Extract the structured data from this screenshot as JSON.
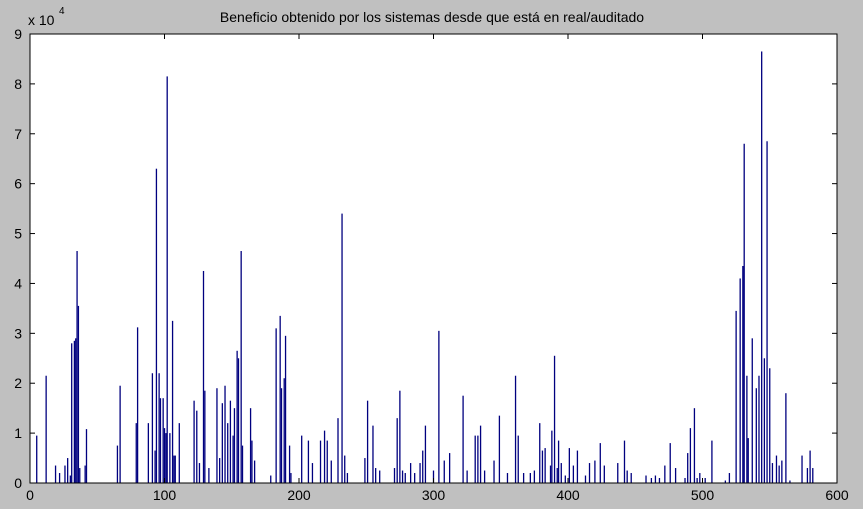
{
  "chart_data": {
    "type": "bar",
    "title": "Beneficio obtenido por los sistemas desde que está en real/auditado",
    "y_multiplier": "x 10",
    "y_multiplier_exponent": "4",
    "color": "#00007f",
    "xlim": [
      0,
      600
    ],
    "xticks": [
      0,
      100,
      200,
      300,
      400,
      500,
      600
    ],
    "ylim": [
      0,
      9
    ],
    "yticks": [
      0,
      1,
      2,
      3,
      4,
      5,
      6,
      7,
      8,
      9
    ],
    "x": [
      5,
      12,
      19,
      22,
      26,
      28,
      30,
      31,
      33,
      34,
      35,
      36,
      37,
      41,
      42,
      65,
      67,
      79,
      80,
      88,
      91,
      93,
      94,
      96,
      97,
      99,
      100,
      101,
      102,
      104,
      106,
      107,
      108,
      111,
      122,
      124,
      126,
      129,
      130,
      133,
      139,
      141,
      143,
      145,
      147,
      149,
      151,
      152,
      154,
      155,
      157,
      158,
      164,
      165,
      167,
      179,
      183,
      186,
      187,
      189,
      190,
      193,
      194,
      202,
      207,
      210,
      216,
      219,
      221,
      224,
      229,
      232,
      234,
      236,
      249,
      251,
      255,
      257,
      260,
      271,
      273,
      275,
      277,
      279,
      283,
      286,
      290,
      292,
      294,
      300,
      304,
      308,
      312,
      322,
      325,
      331,
      333,
      335,
      338,
      345,
      349,
      355,
      361,
      363,
      367,
      372,
      375,
      379,
      381,
      383,
      387,
      388,
      390,
      392,
      393,
      395,
      398,
      401,
      404,
      407,
      413,
      416,
      420,
      424,
      427,
      437,
      442,
      444,
      447,
      458,
      462,
      465,
      468,
      472,
      476,
      480,
      487,
      489,
      491,
      494,
      496,
      498,
      502,
      507,
      517,
      520,
      525,
      528,
      530,
      531,
      533,
      534,
      537,
      540,
      542,
      544,
      546,
      548,
      550,
      552,
      555,
      557,
      559,
      562,
      565,
      574,
      578,
      580,
      582
    ],
    "values": [
      0.95,
      2.15,
      0.35,
      0.2,
      0.35,
      0.5,
      0.15,
      2.8,
      2.85,
      2.9,
      4.65,
      3.55,
      0.3,
      0.35,
      1.08,
      0.75,
      1.95,
      1.2,
      3.12,
      1.2,
      2.2,
      0.65,
      6.3,
      2.2,
      1.7,
      1.7,
      1.1,
      1.0,
      8.15,
      1.0,
      3.25,
      0.55,
      0.55,
      1.2,
      1.65,
      1.45,
      0.4,
      4.25,
      1.85,
      0.3,
      1.9,
      0.5,
      1.6,
      1.95,
      1.2,
      1.65,
      0.95,
      1.5,
      2.65,
      2.5,
      4.65,
      0.75,
      1.5,
      0.85,
      0.45,
      0.15,
      3.1,
      3.35,
      1.9,
      2.1,
      2.95,
      0.75,
      0.2,
      0.95,
      0.85,
      0.4,
      0.85,
      1.05,
      0.85,
      0.45,
      1.3,
      5.4,
      0.55,
      0.2,
      0.5,
      1.65,
      1.15,
      0.3,
      0.25,
      0.3,
      1.3,
      1.85,
      0.25,
      0.2,
      0.4,
      0.2,
      0.4,
      0.65,
      1.15,
      0.25,
      3.05,
      0.45,
      0.6,
      1.75,
      0.25,
      0.95,
      0.95,
      1.15,
      0.25,
      0.45,
      1.35,
      0.2,
      2.15,
      0.95,
      0.2,
      0.2,
      0.25,
      1.2,
      0.65,
      0.7,
      0.35,
      1.05,
      2.55,
      0.3,
      0.85,
      0.4,
      0.15,
      0.7,
      0.35,
      0.65,
      0.15,
      0.4,
      0.45,
      0.8,
      0.35,
      0.4,
      0.85,
      0.25,
      0.2,
      0.15,
      0.1,
      0.15,
      0.1,
      0.35,
      0.8,
      0.3,
      0.1,
      0.6,
      1.1,
      1.5,
      0.1,
      0.2,
      0.1,
      0.85,
      0.05,
      0.2,
      3.45,
      4.1,
      4.35,
      6.8,
      2.15,
      0.9,
      2.9,
      1.9,
      2.15,
      8.65,
      2.5,
      6.85,
      2.3,
      0.4,
      0.55,
      0.35,
      0.45,
      1.8,
      0.05,
      0.55,
      0.3,
      0.65,
      0.3
    ]
  }
}
